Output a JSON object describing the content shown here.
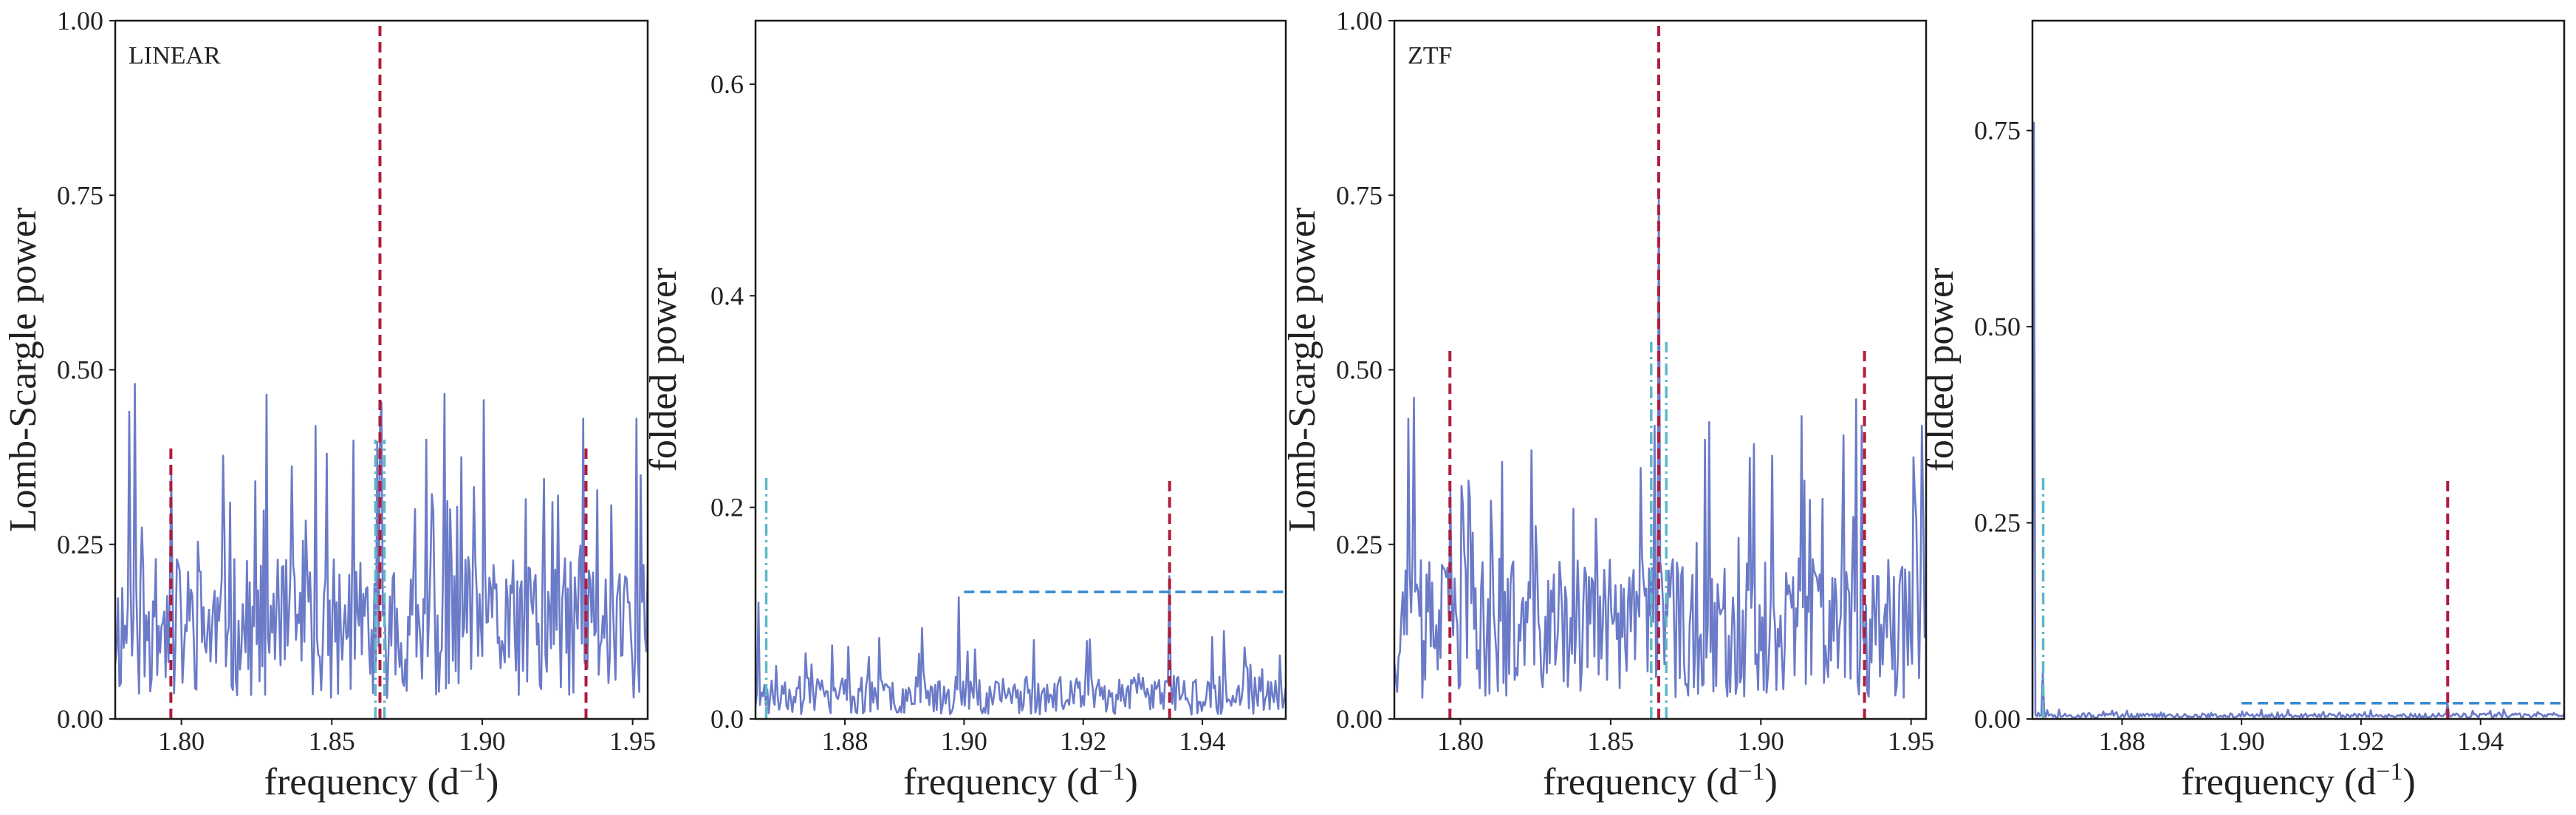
{
  "colors": {
    "series": "#6b7bc8",
    "alias_line": "#b01c3a",
    "cyan_line": "#5fb8c8",
    "threshold_line": "#3a8cd0",
    "frame": "#1a1a1a",
    "background": "#ffffff"
  },
  "chart_data": [
    {
      "type": "line",
      "tag": "LINEAR",
      "xlabel": "frequency (d",
      "xlabel_sup": "−1",
      "xlabel_tail": ")",
      "ylabel": "Lomb-Scargle power",
      "xlim": [
        1.778,
        1.955
      ],
      "ylim": [
        0.0,
        1.0
      ],
      "xticks": [
        1.8,
        1.85,
        1.9,
        1.95
      ],
      "xtick_labels": [
        "1.80",
        "1.85",
        "1.90",
        "1.95"
      ],
      "yticks": [
        0.0,
        0.25,
        0.5,
        0.75,
        1.0
      ],
      "ytick_labels": [
        "0.00",
        "0.25",
        "0.50",
        "0.75",
        "1.00"
      ],
      "grid": false,
      "noise": {
        "base": 0.13,
        "amp": 0.1,
        "seed": 11,
        "n": 380,
        "cap": 0.38
      },
      "peaks": [
        {
          "x": 1.7825,
          "y": 0.44
        },
        {
          "x": 1.7845,
          "y": 0.48
        },
        {
          "x": 1.7965,
          "y": 0.35
        },
        {
          "x": 1.8485,
          "y": 0.38
        },
        {
          "x": 1.866,
          "y": 0.42
        },
        {
          "x": 1.8815,
          "y": 0.4
        },
        {
          "x": 1.9335,
          "y": 0.43
        },
        {
          "x": 1.9515,
          "y": 0.43
        }
      ],
      "vlines": [
        {
          "x": 1.7965,
          "y0": 0.0,
          "y1": 0.39,
          "style": "alias"
        },
        {
          "x": 1.866,
          "y0": 0.0,
          "y1": 1.0,
          "style": "alias"
        },
        {
          "x": 1.9345,
          "y0": 0.0,
          "y1": 0.39,
          "style": "alias"
        },
        {
          "x": 1.8645,
          "y0": 0.0,
          "y1": 0.4,
          "style": "cyan"
        },
        {
          "x": 1.8675,
          "y0": 0.0,
          "y1": 0.4,
          "style": "cyan"
        }
      ],
      "hlines": []
    },
    {
      "type": "line",
      "tag": "",
      "xlabel": "frequency (d",
      "xlabel_sup": "−1",
      "xlabel_tail": ")",
      "ylabel": "folded power",
      "xlim": [
        1.865,
        1.954
      ],
      "ylim": [
        0.0,
        0.66
      ],
      "xticks": [
        1.88,
        1.9,
        1.92,
        1.94
      ],
      "xtick_labels": [
        "1.88",
        "1.90",
        "1.92",
        "1.94"
      ],
      "yticks": [
        0.0,
        0.2,
        0.4,
        0.6
      ],
      "ytick_labels": [
        "0.0",
        "0.2",
        "0.4",
        "0.6"
      ],
      "grid": false,
      "noise": {
        "base": 0.022,
        "amp": 0.018,
        "seed": 23,
        "n": 360,
        "cap": 0.08
      },
      "peaks": [
        {
          "x": 1.8655,
          "y": 0.11
        },
        {
          "x": 1.899,
          "y": 0.115
        },
        {
          "x": 1.9345,
          "y": 0.135
        },
        {
          "x": 1.953,
          "y": 0.06
        }
      ],
      "vlines": [
        {
          "x": 1.8668,
          "y0": 0.0,
          "y1": 0.23,
          "style": "cyan"
        },
        {
          "x": 1.9345,
          "y0": 0.0,
          "y1": 0.23,
          "style": "alias"
        }
      ],
      "hlines": [
        {
          "y": 0.12,
          "x0": 1.9,
          "x1": 1.954,
          "style": "threshold"
        }
      ]
    },
    {
      "type": "line",
      "tag": "ZTF",
      "xlabel": "frequency (d",
      "xlabel_sup": "−1",
      "xlabel_tail": ")",
      "ylabel": "Lomb-Scargle power",
      "xlim": [
        1.778,
        1.955
      ],
      "ylim": [
        0.0,
        1.0
      ],
      "xticks": [
        1.8,
        1.85,
        1.9,
        1.95
      ],
      "xtick_labels": [
        "1.80",
        "1.85",
        "1.90",
        "1.95"
      ],
      "yticks": [
        0.0,
        0.25,
        0.5,
        0.75,
        1.0
      ],
      "ytick_labels": [
        "0.00",
        "0.25",
        "0.50",
        "0.75",
        "1.00"
      ],
      "grid": false,
      "noise": {
        "base": 0.13,
        "amp": 0.1,
        "seed": 37,
        "n": 380,
        "cap": 0.38
      },
      "peaks": [
        {
          "x": 1.7825,
          "y": 0.43
        },
        {
          "x": 1.7845,
          "y": 0.46
        },
        {
          "x": 1.7965,
          "y": 0.33
        },
        {
          "x": 1.8645,
          "y": 0.42
        },
        {
          "x": 1.866,
          "y": 0.75
        },
        {
          "x": 1.8815,
          "y": 0.4
        },
        {
          "x": 1.9335,
          "y": 0.42
        },
        {
          "x": 1.9535,
          "y": 0.42
        }
      ],
      "vlines": [
        {
          "x": 1.7965,
          "y0": 0.0,
          "y1": 0.53,
          "style": "alias"
        },
        {
          "x": 1.866,
          "y0": 0.0,
          "y1": 1.0,
          "style": "alias"
        },
        {
          "x": 1.9345,
          "y0": 0.0,
          "y1": 0.53,
          "style": "alias"
        },
        {
          "x": 1.8635,
          "y0": 0.0,
          "y1": 0.54,
          "style": "cyan"
        },
        {
          "x": 1.8685,
          "y0": 0.0,
          "y1": 0.54,
          "style": "cyan"
        }
      ],
      "hlines": []
    },
    {
      "type": "line",
      "tag": "",
      "xlabel": "frequency (d",
      "xlabel_sup": "−1",
      "xlabel_tail": ")",
      "ylabel": "folded power",
      "xlim": [
        1.865,
        1.954
      ],
      "ylim": [
        0.0,
        0.89
      ],
      "xticks": [
        1.88,
        1.9,
        1.92,
        1.94
      ],
      "xtick_labels": [
        "1.88",
        "1.90",
        "1.92",
        "1.94"
      ],
      "yticks": [
        0.0,
        0.25,
        0.5,
        0.75
      ],
      "ytick_labels": [
        "0.00",
        "0.25",
        "0.50",
        "0.75"
      ],
      "grid": false,
      "noise": {
        "base": 0.004,
        "amp": 0.003,
        "seed": 51,
        "n": 360,
        "cap": 0.01
      },
      "peaks": [
        {
          "x": 1.8652,
          "y": 0.76
        },
        {
          "x": 1.8668,
          "y": 0.06
        },
        {
          "x": 1.8695,
          "y": 0.012
        },
        {
          "x": 1.9345,
          "y": 0.02
        }
      ],
      "vlines": [
        {
          "x": 1.8668,
          "y0": 0.0,
          "y1": 0.31,
          "style": "cyan"
        },
        {
          "x": 1.9345,
          "y0": 0.0,
          "y1": 0.31,
          "style": "alias"
        }
      ],
      "hlines": [
        {
          "y": 0.02,
          "x0": 1.9,
          "x1": 1.954,
          "style": "threshold"
        }
      ]
    }
  ]
}
